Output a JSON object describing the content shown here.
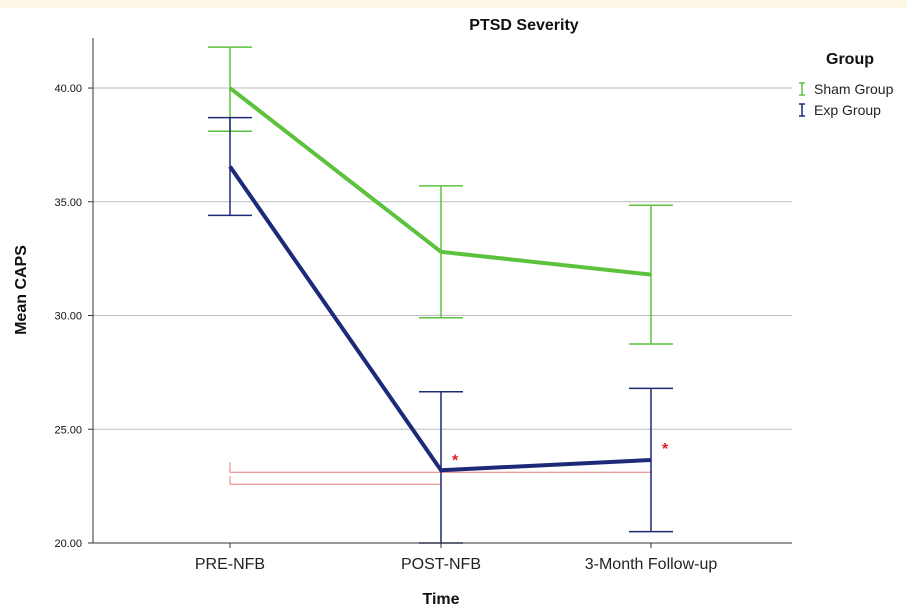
{
  "chart_data": {
    "type": "line",
    "title": "PTSD Severity",
    "xlabel": "Time",
    "ylabel": "Mean CAPS",
    "categories": [
      "PRE-NFB",
      "POST-NFB",
      "3-Month Follow-up"
    ],
    "ylim": [
      20,
      42.2
    ],
    "yticks": [
      "20.00",
      "25.00",
      "30.00",
      "35.00",
      "40.00"
    ],
    "grid": true,
    "legend": {
      "title": "Group",
      "placement": "top-right"
    },
    "series": [
      {
        "name": "Sham Group",
        "color": "#5cc23d",
        "values": [
          40.0,
          32.8,
          31.8
        ],
        "error_low": [
          38.1,
          29.9,
          28.75
        ],
        "error_high": [
          41.8,
          35.7,
          34.85
        ]
      },
      {
        "name": "Exp Group",
        "color": "#1c2a78",
        "values": [
          36.55,
          23.2,
          23.65
        ],
        "error_low": [
          34.4,
          20.0,
          20.5
        ],
        "error_high": [
          38.7,
          26.65,
          26.8
        ]
      }
    ],
    "annotations": [
      {
        "text": "*",
        "category": "POST-NFB",
        "value": 23.5,
        "color": "#e02020"
      },
      {
        "text": "*",
        "category": "3-Month Follow-up",
        "value": 24.0,
        "color": "#e02020"
      }
    ]
  }
}
